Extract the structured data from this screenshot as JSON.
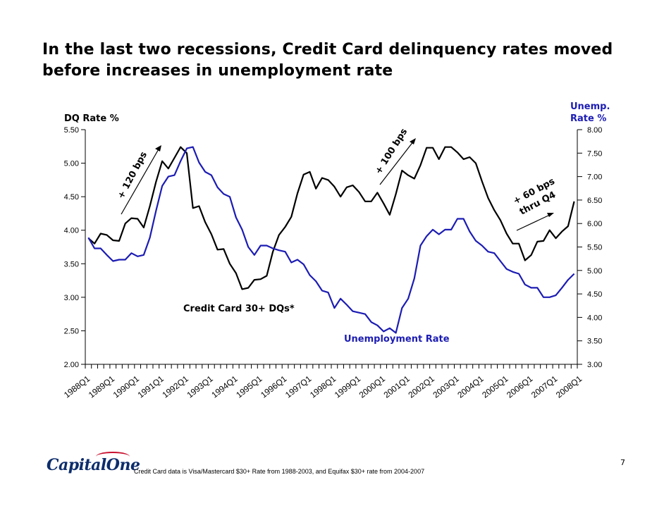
{
  "page_title": "In the last two recessions, Credit Card delinquency rates moved before increases in unemployment rate",
  "page_number": "7",
  "footnote": "Credit Card data is Visa/Mastercard $30+ Rate from 1988-2003, and Equifax $30+ rate from 2004-2007",
  "logo_text": "CapitalOne",
  "colors": {
    "dq_line": "#000000",
    "unemp_line": "#1c1cb4",
    "unemp_label": "#1c1cb4"
  },
  "chart_data": {
    "type": "line",
    "title": "",
    "xlabel": "",
    "left_axis_label": "DQ Rate %",
    "right_axis_label_line1": "Unemp.",
    "right_axis_label_line2": "Rate %",
    "left_ylim": [
      2.0,
      5.5
    ],
    "left_ticks": [
      "2.00",
      "2.50",
      "3.00",
      "3.50",
      "4.00",
      "4.50",
      "5.00",
      "5.50"
    ],
    "right_ylim": [
      3.0,
      8.0
    ],
    "right_ticks": [
      "3.00",
      "3.50",
      "4.00",
      "4.50",
      "5.00",
      "5.50",
      "6.00",
      "6.50",
      "7.00",
      "7.50",
      "8.00"
    ],
    "x_tick_labels": [
      "1988Q1",
      "1989Q1",
      "1990Q1",
      "1991Q1",
      "1992Q1",
      "1993Q1",
      "1994Q1",
      "1995Q1",
      "1996Q1",
      "1997Q1",
      "1998Q1",
      "1999Q1",
      "2000Q1",
      "2001Q1",
      "2002Q1",
      "2003Q1",
      "2004Q1",
      "2005Q1",
      "2006Q1",
      "2007Q1",
      "2008Q1"
    ],
    "quarters_per_label": 4,
    "series": [
      {
        "name": "Credit Card 30+ DQs*",
        "axis": "left",
        "values": [
          3.88,
          3.8,
          3.95,
          3.93,
          3.85,
          3.84,
          4.1,
          4.18,
          4.17,
          4.04,
          4.36,
          4.72,
          5.03,
          4.92,
          5.08,
          5.24,
          5.15,
          4.33,
          4.36,
          4.12,
          3.94,
          3.71,
          3.72,
          3.5,
          3.36,
          3.12,
          3.14,
          3.26,
          3.27,
          3.32,
          3.68,
          3.93,
          4.05,
          4.2,
          4.55,
          4.83,
          4.87,
          4.62,
          4.78,
          4.75,
          4.65,
          4.5,
          4.64,
          4.67,
          4.57,
          4.43,
          4.43,
          4.56,
          4.4,
          4.23,
          4.54,
          4.89,
          4.82,
          4.77,
          4.97,
          5.23,
          5.23,
          5.06,
          5.24,
          5.24,
          5.16,
          5.06,
          5.09,
          5.0,
          4.73,
          4.48,
          4.3,
          4.15,
          3.95,
          3.8,
          3.8,
          3.55,
          3.63,
          3.83,
          3.84,
          4.0,
          3.88,
          3.98,
          4.06,
          4.43
        ]
      },
      {
        "name": "Unemployment Rate",
        "axis": "right",
        "values": [
          5.7,
          5.47,
          5.47,
          5.33,
          5.2,
          5.23,
          5.23,
          5.37,
          5.3,
          5.33,
          5.7,
          6.27,
          6.8,
          7.0,
          7.03,
          7.33,
          7.6,
          7.63,
          7.3,
          7.1,
          7.03,
          6.77,
          6.63,
          6.57,
          6.13,
          5.87,
          5.5,
          5.33,
          5.53,
          5.53,
          5.47,
          5.43,
          5.4,
          5.17,
          5.23,
          5.13,
          4.9,
          4.77,
          4.57,
          4.53,
          4.2,
          4.4,
          4.27,
          4.13,
          4.1,
          4.07,
          3.9,
          3.83,
          3.7,
          3.77,
          3.67,
          4.2,
          4.4,
          4.83,
          5.53,
          5.73,
          5.87,
          5.77,
          5.87,
          5.87,
          6.1,
          6.1,
          5.83,
          5.63,
          5.53,
          5.4,
          5.37,
          5.2,
          5.03,
          4.97,
          4.93,
          4.7,
          4.63,
          4.63,
          4.43,
          4.43,
          4.47,
          4.63,
          4.8,
          4.93
        ]
      }
    ],
    "annotations": {
      "dq_label": "Credit Card 30+ DQs*",
      "unemp_label": "Unemployment Rate",
      "arrow1": "+ 120 bps",
      "arrow2": "+ 100 bps",
      "arrow3_line1": "+ 60 bps",
      "arrow3_line2": "thru Q4"
    }
  }
}
